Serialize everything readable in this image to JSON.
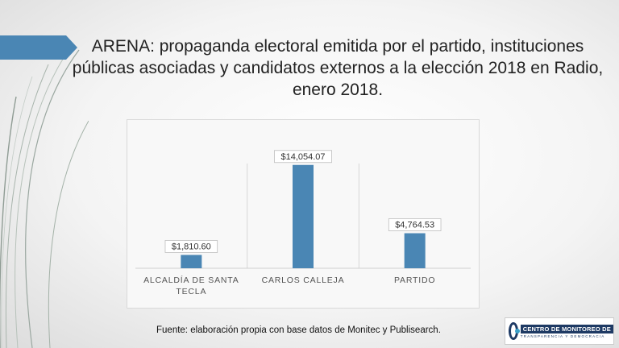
{
  "title": "ARENA: propaganda electoral emitida por el partido, instituciones públicas asociadas y candidatos externos a la elección 2018 en Radio, enero 2018.",
  "source": "Fuente: elaboración propia con base datos de Monitec y Publisearch.",
  "logo": {
    "top": "CENTRO DE MONITOREO DE",
    "sub": "TRANSPARENCIA Y DEMOCRACIA"
  },
  "colors": {
    "bar": "#4a86b4",
    "accent_arrow": "#4a86b4"
  },
  "chart_data": {
    "type": "bar",
    "categories": [
      "ALCALDÍA DE SANTA TECLA",
      "CARLOS CALLEJA",
      "PARTIDO"
    ],
    "category_lines": [
      [
        "ALCALDÍA DE SANTA",
        "TECLA"
      ],
      [
        "CARLOS CALLEJA"
      ],
      [
        "PARTIDO"
      ]
    ],
    "values": [
      1810.6,
      14054.07,
      4764.53
    ],
    "data_labels": [
      "$1,810.60",
      "$14,054.07",
      "$4,764.53"
    ],
    "ylim": [
      0,
      16000
    ],
    "grid": "vertical separators",
    "legend": "none",
    "title": "",
    "xlabel": "",
    "ylabel": ""
  }
}
